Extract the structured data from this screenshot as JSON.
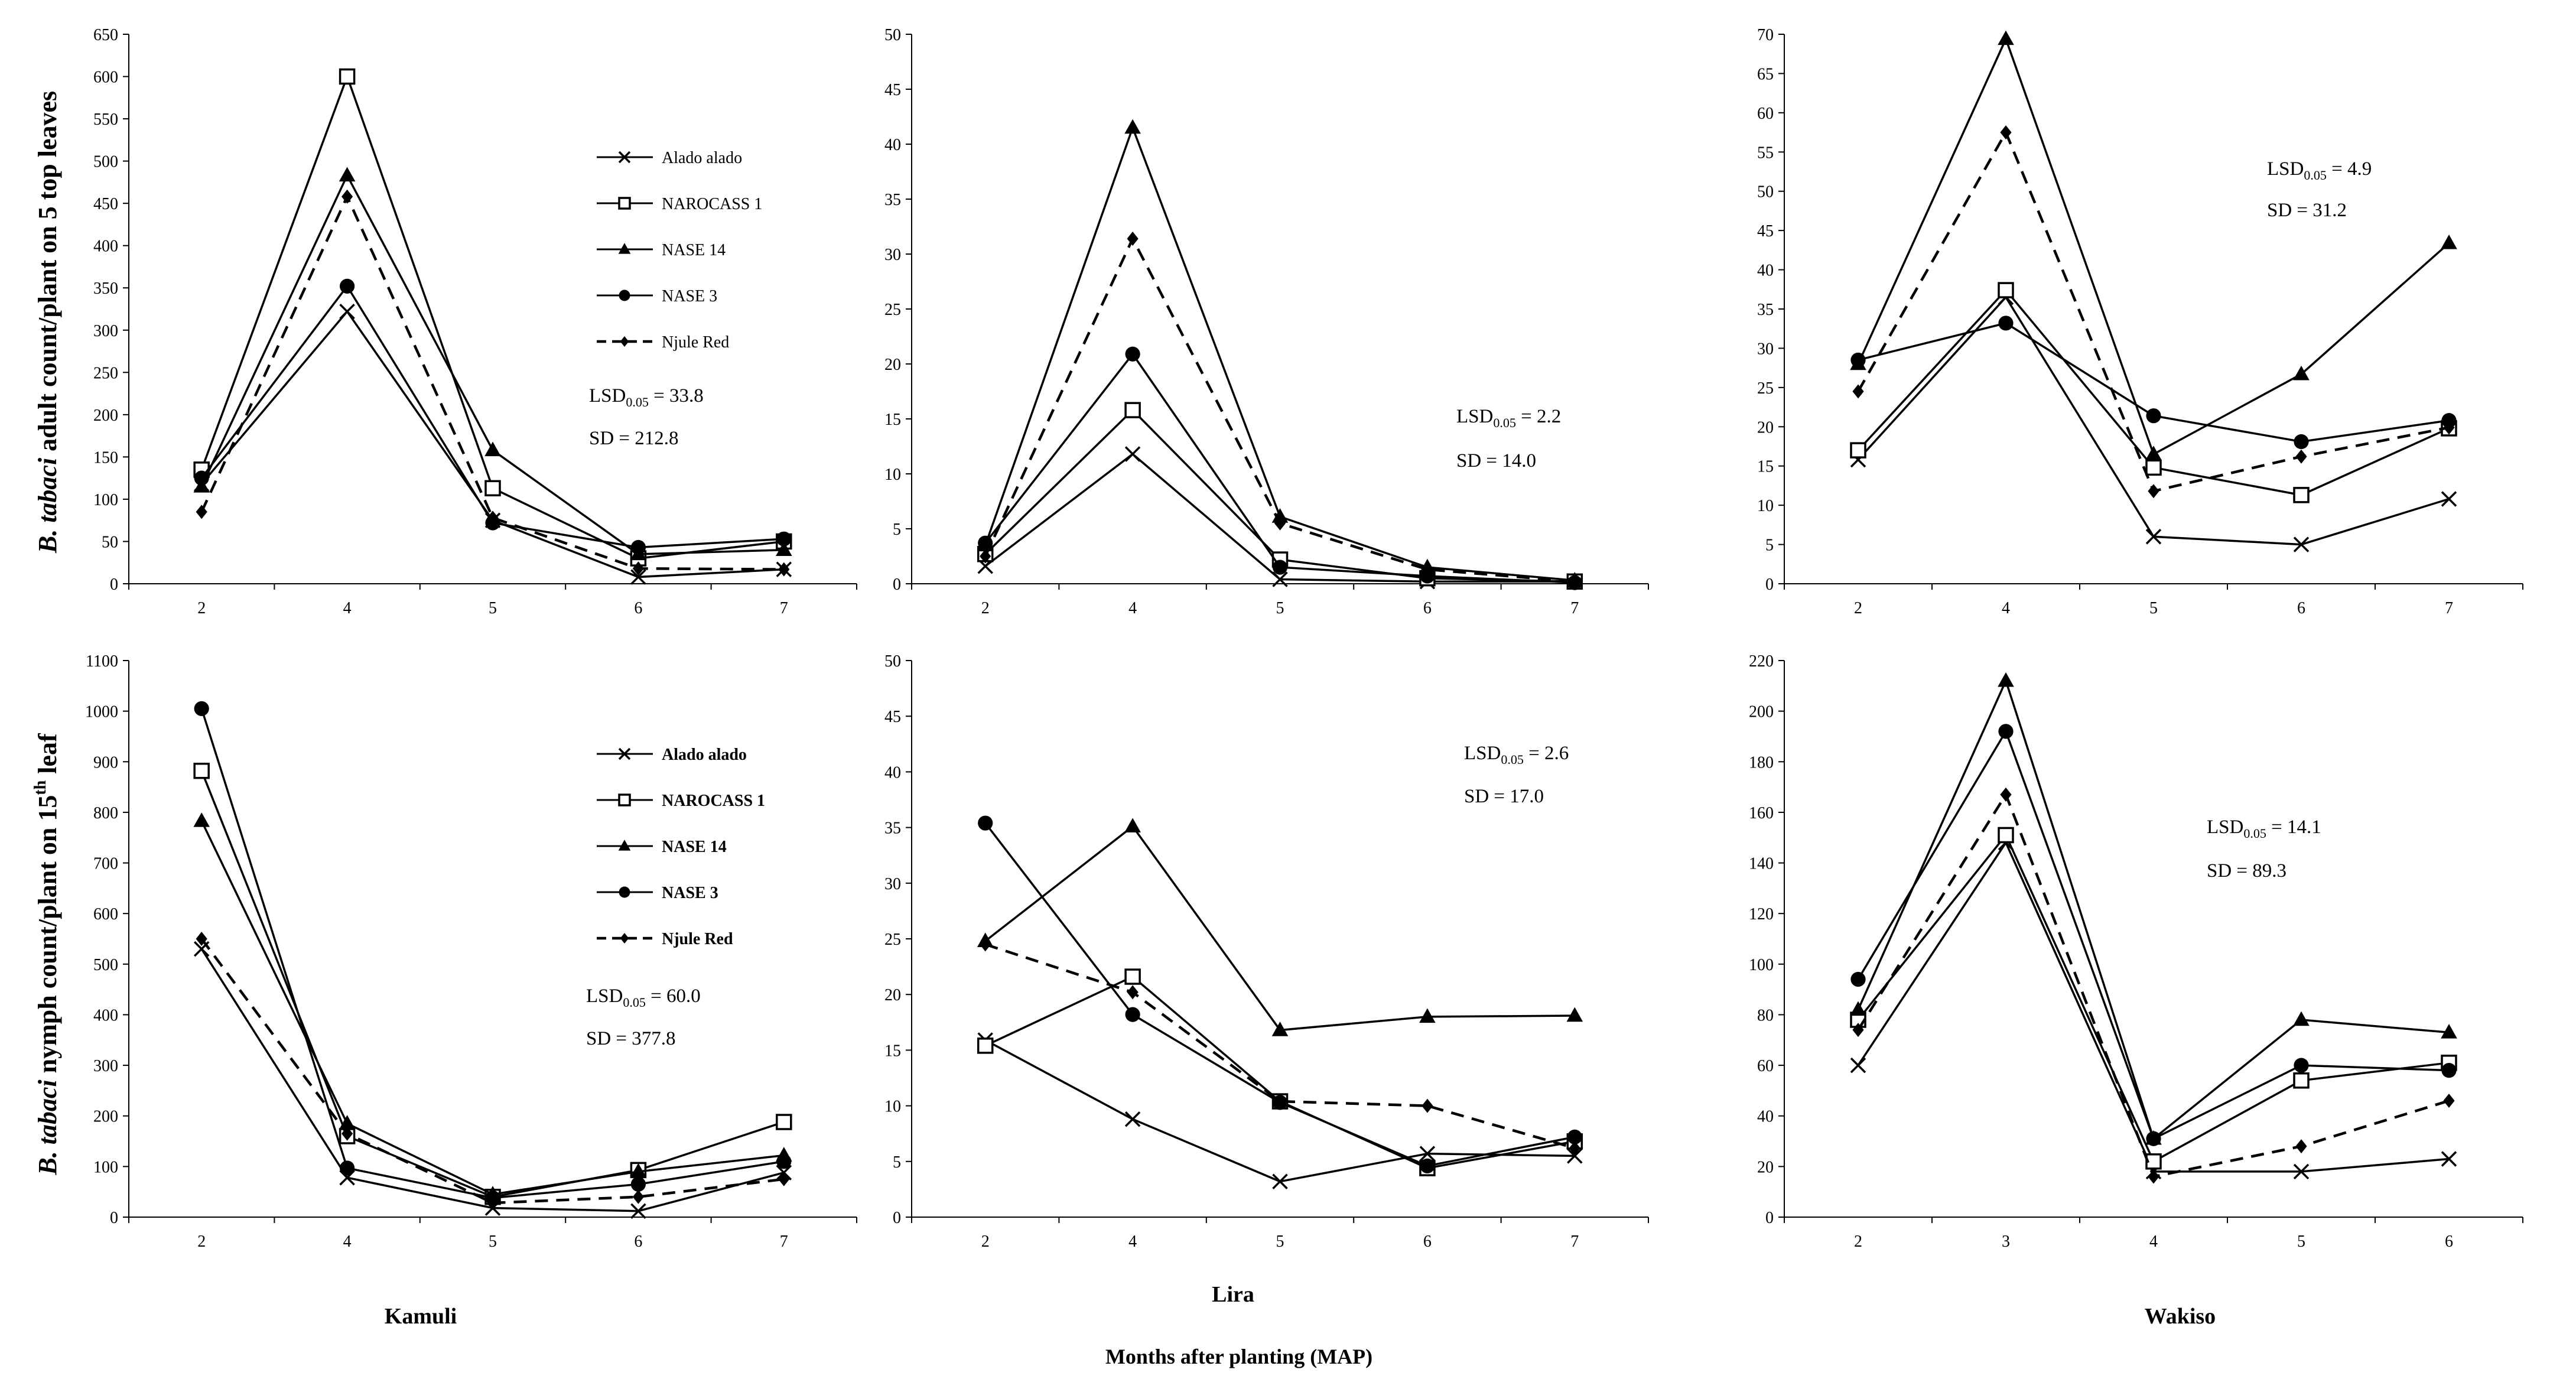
{
  "figure": {
    "ylabel_top_italic": "B. tabaci",
    "ylabel_top_rest": " adult count/plant on 5 top leaves",
    "ylabel_bottom_italic": "B. tabaci",
    "ylabel_bottom_rest": " nymph count/plant on 15",
    "ylabel_bottom_sup": "th",
    "ylabel_bottom_end": "  leaf",
    "locations": [
      "Kamuli",
      "Lira",
      "Wakiso"
    ],
    "xlabel": "Months after planting (MAP)"
  },
  "series_styles": {
    "Alado alado": {
      "marker": "x",
      "dash": false
    },
    "NAROCASS 1": {
      "marker": "square",
      "dash": false
    },
    "NASE 14": {
      "marker": "triangle",
      "dash": false
    },
    "NASE 3": {
      "marker": "circle",
      "dash": false
    },
    "Njule Red": {
      "marker": "diamond",
      "dash": true
    }
  },
  "chart_data": [
    {
      "type": "line",
      "title": "Kamuli adult",
      "categories": [
        "2",
        "4",
        "5",
        "6",
        "7"
      ],
      "ylim": [
        0,
        650
      ],
      "ystep": 50,
      "legend": "Kamuli adult legend",
      "lsd_value": "= 33.8",
      "sd_text": "SD = 212.8",
      "series": [
        {
          "name": "Alado alado",
          "values": [
            118,
            322,
            75,
            8,
            17
          ]
        },
        {
          "name": "NAROCASS 1",
          "values": [
            135,
            600,
            113,
            30,
            50
          ]
        },
        {
          "name": "NASE 14",
          "values": [
            115,
            483,
            158,
            35,
            40
          ]
        },
        {
          "name": "NASE 3",
          "values": [
            125,
            352,
            72,
            43,
            53
          ]
        },
        {
          "name": "Njule Red",
          "values": [
            85,
            458,
            78,
            18,
            17
          ]
        }
      ]
    },
    {
      "type": "line",
      "title": "Lira adult",
      "categories": [
        "2",
        "4",
        "5",
        "6",
        "7"
      ],
      "ylim": [
        0,
        50
      ],
      "ystep": 5,
      "lsd_value": "= 2.2",
      "sd_text": "SD = 14.0",
      "series": [
        {
          "name": "Alado alado",
          "values": [
            1.6,
            11.8,
            0.4,
            0.2,
            0.2
          ]
        },
        {
          "name": "NAROCASS 1",
          "values": [
            2.7,
            15.8,
            2.2,
            0.5,
            0.2
          ]
        },
        {
          "name": "NASE 14",
          "values": [
            3.5,
            41.5,
            6.1,
            1.5,
            0.3
          ]
        },
        {
          "name": "NASE 3",
          "values": [
            3.7,
            20.9,
            1.5,
            0.7,
            0.1
          ]
        },
        {
          "name": "Njule Red",
          "values": [
            2.5,
            31.4,
            5.5,
            1.3,
            0.2
          ]
        }
      ]
    },
    {
      "type": "line",
      "title": "Wakiso adult",
      "categories": [
        "2",
        "4",
        "5",
        "6",
        "7"
      ],
      "ylim": [
        0,
        70
      ],
      "ystep": 5,
      "lsd_value": "= 4.9",
      "sd_text": "SD = 31.2",
      "series": [
        {
          "name": "Alado alado",
          "values": [
            15.8,
            36.5,
            6.0,
            5.0,
            10.8
          ]
        },
        {
          "name": "NAROCASS 1",
          "values": [
            17.0,
            37.4,
            14.8,
            11.3,
            19.8
          ]
        },
        {
          "name": "NASE 14",
          "values": [
            28.0,
            69.4,
            16.5,
            26.7,
            43.4
          ]
        },
        {
          "name": "NASE 3",
          "values": [
            28.5,
            33.2,
            21.4,
            18.1,
            20.8
          ]
        },
        {
          "name": "Njule Red",
          "values": [
            24.5,
            57.5,
            11.8,
            16.2,
            19.9
          ]
        }
      ]
    },
    {
      "type": "line",
      "title": "Kamuli nymph",
      "categories": [
        "2",
        "4",
        "5",
        "6",
        "7"
      ],
      "ylim": [
        0,
        1100
      ],
      "ystep": 100,
      "legend": "Kamuli nymph legend",
      "lsd_value": "= 60.0",
      "sd_text": "SD = 377.8",
      "series": [
        {
          "name": "Alado alado",
          "values": [
            530,
            78,
            18,
            12,
            88
          ]
        },
        {
          "name": "NAROCASS 1",
          "values": [
            882,
            160,
            40,
            93,
            188
          ]
        },
        {
          "name": "NASE 14",
          "values": [
            783,
            185,
            45,
            90,
            122
          ]
        },
        {
          "name": "NASE 3",
          "values": [
            1005,
            97,
            38,
            65,
            110
          ]
        },
        {
          "name": "Njule Red",
          "values": [
            550,
            165,
            28,
            40,
            75
          ]
        }
      ]
    },
    {
      "type": "line",
      "title": "Lira nymph",
      "categories": [
        "2",
        "4",
        "5",
        "6",
        "7"
      ],
      "ylim": [
        0,
        50
      ],
      "ystep": 5,
      "lsd_value": "= 2.6",
      "sd_text": "SD = 17.0",
      "series": [
        {
          "name": "Alado alado",
          "values": [
            15.9,
            8.8,
            3.2,
            5.7,
            5.5
          ]
        },
        {
          "name": "NAROCASS 1",
          "values": [
            15.4,
            21.6,
            10.4,
            4.4,
            6.8
          ]
        },
        {
          "name": "NASE 14",
          "values": [
            24.8,
            35.1,
            16.8,
            18.0,
            18.1
          ]
        },
        {
          "name": "NASE 3",
          "values": [
            35.4,
            18.2,
            10.3,
            4.6,
            7.2
          ]
        },
        {
          "name": "Njule Red",
          "values": [
            24.5,
            20.2,
            10.4,
            10.0,
            6.2
          ]
        }
      ]
    },
    {
      "type": "line",
      "title": "Wakiso nymph",
      "categories": [
        "2",
        "3",
        "4",
        "5",
        "6"
      ],
      "ylim": [
        0,
        220
      ],
      "ystep": 20,
      "lsd_value": "= 14.1",
      "sd_text": "SD = 89.3",
      "series": [
        {
          "name": "Alado alado",
          "values": [
            60,
            148,
            18,
            18,
            23
          ]
        },
        {
          "name": "NAROCASS 1",
          "values": [
            78,
            151,
            22,
            54,
            61
          ]
        },
        {
          "name": "NASE 14",
          "values": [
            82,
            212,
            31,
            78,
            73
          ]
        },
        {
          "name": "NASE 3",
          "values": [
            94,
            192,
            31,
            60,
            58
          ]
        },
        {
          "name": "Njule Red",
          "values": [
            74,
            167,
            16,
            28,
            46
          ]
        }
      ]
    }
  ]
}
